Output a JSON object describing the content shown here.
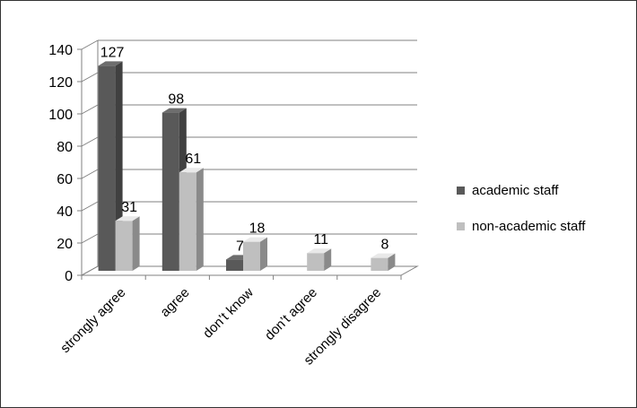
{
  "chart_data": {
    "type": "bar",
    "style": "3d-clustered-column",
    "categories": [
      "strongly agree",
      "agree",
      "don’t know",
      "don’t agree",
      "strongly disagree"
    ],
    "series": [
      {
        "name": "academic staff",
        "values": [
          127,
          98,
          7,
          0,
          0
        ],
        "color": "#595959"
      },
      {
        "name": "non-academic staff",
        "values": [
          31,
          61,
          18,
          11,
          8
        ],
        "color": "#BFBFBF"
      }
    ],
    "data_labels": [
      [
        "127",
        "98",
        "7",
        "",
        ""
      ],
      [
        "31",
        "61",
        "18",
        "11",
        "8"
      ]
    ],
    "yticks": [
      0,
      20,
      40,
      60,
      80,
      100,
      120,
      140
    ],
    "ylim": [
      0,
      140
    ],
    "grid": true,
    "legend_position": "right"
  }
}
